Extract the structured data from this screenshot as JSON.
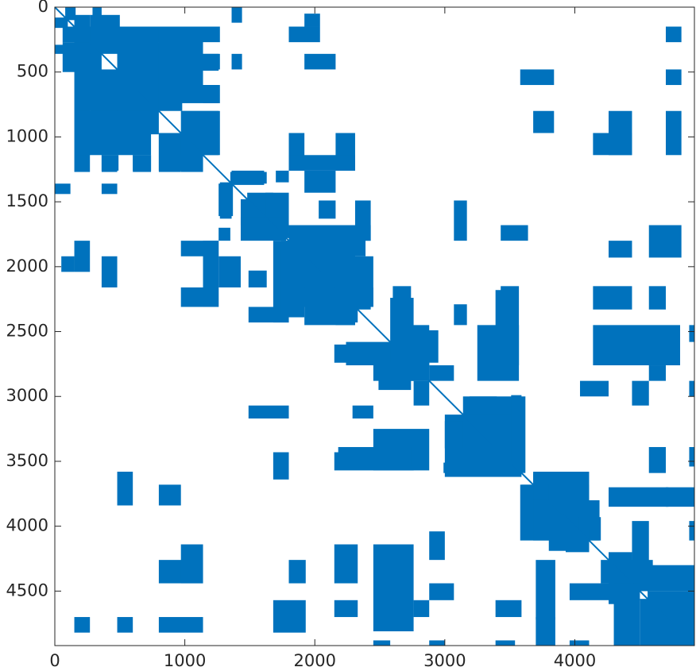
{
  "chart_data": {
    "type": "spy",
    "symmetric": true,
    "diagonal": true,
    "color": "#0072BD",
    "xlim": [
      0,
      4920
    ],
    "ylim": [
      0,
      4920
    ],
    "y_reversed": true,
    "xticks": [
      0,
      1000,
      2000,
      3000,
      4000
    ],
    "yticks": [
      0,
      500,
      1000,
      1500,
      2000,
      2500,
      3000,
      3500,
      4000,
      4500
    ],
    "blocks": [
      {
        "x": [
          80,
          160
        ],
        "y": [
          0,
          100
        ]
      },
      {
        "x": [
          290,
          360
        ],
        "y": [
          0,
          200
        ]
      },
      {
        "x": [
          1360,
          1440
        ],
        "y": [
          0,
          120
        ]
      },
      {
        "x": [
          1800,
          2040
        ],
        "y": [
          150,
          270
        ]
      },
      {
        "x": [
          1920,
          2040
        ],
        "y": [
          50,
          150
        ]
      },
      {
        "x": [
          4700,
          4820
        ],
        "y": [
          150,
          270
        ]
      },
      {
        "x": [
          1920,
          2160
        ],
        "y": [
          360,
          480
        ]
      },
      {
        "x": [
          1360,
          1440
        ],
        "y": [
          360,
          480
        ]
      },
      {
        "x": [
          1140,
          1270
        ],
        "y": [
          360,
          480
        ]
      },
      {
        "x": [
          3580,
          3840
        ],
        "y": [
          480,
          600
        ]
      },
      {
        "x": [
          4700,
          4820
        ],
        "y": [
          480,
          600
        ]
      },
      {
        "x": [
          1140,
          1270
        ],
        "y": [
          600,
          740
        ]
      },
      {
        "x": [
          3680,
          3840
        ],
        "y": [
          800,
          970
        ]
      },
      {
        "x": [
          4260,
          4440
        ],
        "y": [
          800,
          1140
        ]
      },
      {
        "x": [
          4140,
          4440
        ],
        "y": [
          970,
          1140
        ]
      },
      {
        "x": [
          4700,
          4820
        ],
        "y": [
          800,
          1140
        ]
      },
      {
        "x": [
          980,
          1270
        ],
        "y": [
          800,
          970
        ]
      },
      {
        "x": [
          1140,
          1270
        ],
        "y": [
          970,
          1140
        ]
      },
      {
        "x": [
          800,
          1140
        ],
        "y": [
          970,
          1260
        ]
      },
      {
        "x": [
          1800,
          1920
        ],
        "y": [
          970,
          1260
        ]
      },
      {
        "x": [
          2160,
          2310
        ],
        "y": [
          970,
          1260
        ]
      },
      {
        "x": [
          1800,
          2310
        ],
        "y": [
          1140,
          1260
        ]
      },
      {
        "x": [
          1920,
          2160
        ],
        "y": [
          1260,
          1430
        ]
      },
      {
        "x": [
          60,
          1270
        ],
        "y": [
          150,
          270
        ]
      },
      {
        "x": [
          60,
          360
        ],
        "y": [
          270,
          500
        ]
      },
      {
        "x": [
          600,
          970
        ],
        "y": [
          270,
          740
        ]
      },
      {
        "x": [
          160,
          980
        ],
        "y": [
          480,
          800
        ]
      },
      {
        "x": [
          160,
          740
        ],
        "y": [
          800,
          1140
        ]
      },
      {
        "x": [
          160,
          240
        ],
        "y": [
          1140,
          1260
        ]
      },
      {
        "x": [
          360,
          490
        ],
        "y": [
          1140,
          1260
        ]
      },
      {
        "x": [
          600,
          740
        ],
        "y": [
          1140,
          1260
        ]
      },
      {
        "x": [
          1360,
          1610
        ],
        "y": [
          1260,
          1370
        ]
      },
      {
        "x": [
          1700,
          1800
        ],
        "y": [
          1260,
          1350
        ]
      },
      {
        "x": [
          1270,
          1360
        ],
        "y": [
          1350,
          1630
        ]
      },
      {
        "x": [
          1480,
          1680
        ],
        "y": [
          1430,
          1740
        ]
      },
      {
        "x": [
          1620,
          1800
        ],
        "y": [
          1430,
          1780
        ]
      },
      {
        "x": [
          2030,
          2160
        ],
        "y": [
          1490,
          1630
        ]
      },
      {
        "x": [
          2310,
          2430
        ],
        "y": [
          1490,
          1800
        ]
      },
      {
        "x": [
          1800,
          2430
        ],
        "y": [
          1680,
          1800
        ]
      },
      {
        "x": [
          3070,
          3170
        ],
        "y": [
          1490,
          1800
        ]
      },
      {
        "x": [
          3430,
          3640
        ],
        "y": [
          1680,
          1800
        ]
      },
      {
        "x": [
          1800,
          2310
        ],
        "y": [
          1800,
          2210
        ]
      },
      {
        "x": [
          1740,
          1920
        ],
        "y": [
          1800,
          2390
        ]
      },
      {
        "x": [
          2160,
          2310
        ],
        "y": [
          1800,
          2450
        ]
      },
      {
        "x": [
          2310,
          2430
        ],
        "y": [
          2030,
          2330
        ]
      },
      {
        "x": [
          4260,
          4440
        ],
        "y": [
          1800,
          1930
        ]
      },
      {
        "x": [
          4570,
          4820
        ],
        "y": [
          1680,
          1930
        ]
      },
      {
        "x": [
          1920,
          2310
        ],
        "y": [
          2210,
          2450
        ]
      },
      {
        "x": [
          2600,
          2740
        ],
        "y": [
          2150,
          2580
        ]
      },
      {
        "x": [
          3070,
          3170
        ],
        "y": [
          2290,
          2450
        ]
      },
      {
        "x": [
          3430,
          3570
        ],
        "y": [
          2150,
          2760
        ]
      },
      {
        "x": [
          3250,
          3570
        ],
        "y": [
          2450,
          2880
        ]
      },
      {
        "x": [
          4140,
          4440
        ],
        "y": [
          2150,
          2330
        ]
      },
      {
        "x": [
          4570,
          4700
        ],
        "y": [
          2150,
          2330
        ]
      },
      {
        "x": [
          4140,
          4810
        ],
        "y": [
          2450,
          2760
        ]
      },
      {
        "x": [
          4570,
          4700
        ],
        "y": [
          2760,
          2880
        ]
      },
      {
        "x": [
          4880,
          4920
        ],
        "y": [
          2450,
          2580
        ]
      },
      {
        "x": [
          2240,
          2880
        ],
        "y": [
          2580,
          2760
        ]
      },
      {
        "x": [
          2490,
          2740
        ],
        "y": [
          2760,
          2950
        ]
      },
      {
        "x": [
          2740,
          2880
        ],
        "y": [
          2450,
          2880
        ]
      },
      {
        "x": [
          2880,
          3070
        ],
        "y": [
          2760,
          2880
        ]
      },
      {
        "x": [
          4040,
          4260
        ],
        "y": [
          2880,
          3000
        ]
      },
      {
        "x": [
          4440,
          4570
        ],
        "y": [
          2880,
          3070
        ]
      },
      {
        "x": [
          4880,
          4920
        ],
        "y": [
          2880,
          3000
        ]
      },
      {
        "x": [
          3140,
          3620
        ],
        "y": [
          3000,
          3590
        ]
      },
      {
        "x": [
          3000,
          3140
        ],
        "y": [
          3190,
          3400
        ]
      },
      {
        "x": [
          2490,
          2830
        ],
        "y": [
          3260,
          3400
        ]
      },
      {
        "x": [
          2180,
          2740
        ],
        "y": [
          3390,
          3540
        ]
      },
      {
        "x": [
          2990,
          3500
        ],
        "y": [
          3510,
          3590
        ]
      },
      {
        "x": [
          4570,
          4700
        ],
        "y": [
          3390,
          3590
        ]
      },
      {
        "x": [
          4880,
          4920
        ],
        "y": [
          3390,
          3540
        ]
      },
      {
        "x": [
          3680,
          4040
        ],
        "y": [
          3590,
          3800
        ]
      },
      {
        "x": [
          3580,
          3800
        ],
        "y": [
          3680,
          4110
        ]
      },
      {
        "x": [
          3800,
          4110
        ],
        "y": [
          3680,
          4190
        ]
      },
      {
        "x": [
          4030,
          4200
        ],
        "y": [
          3930,
          4110
        ]
      },
      {
        "x": [
          4260,
          4720
        ],
        "y": [
          3700,
          3850
        ]
      },
      {
        "x": [
          4700,
          4920
        ],
        "y": [
          3700,
          3850
        ]
      },
      {
        "x": [
          4440,
          4570
        ],
        "y": [
          3960,
          4500
        ]
      },
      {
        "x": [
          4880,
          4920
        ],
        "y": [
          3960,
          4110
        ]
      },
      {
        "x": [
          4260,
          4440
        ],
        "y": [
          4200,
          4600
        ]
      },
      {
        "x": [
          4440,
          4920
        ],
        "y": [
          4300,
          4500
        ]
      },
      {
        "x": [
          4560,
          4920
        ],
        "y": [
          4500,
          4920
        ]
      }
    ]
  }
}
